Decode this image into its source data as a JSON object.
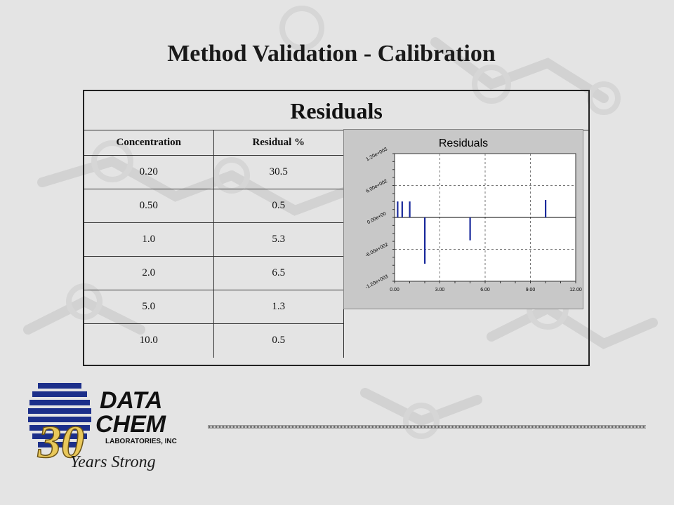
{
  "slide": {
    "title": "Method Validation - Calibration"
  },
  "panel": {
    "title": "Residuals"
  },
  "table": {
    "headers": [
      "Concentration",
      "Residual %"
    ],
    "rows": [
      [
        "0.20",
        "30.5"
      ],
      [
        "0.50",
        "0.5"
      ],
      [
        "1.0",
        "5.3"
      ],
      [
        "2.0",
        "6.5"
      ],
      [
        "5.0",
        "1.3"
      ],
      [
        "10.0",
        "0.5"
      ]
    ]
  },
  "chart_data": {
    "type": "bar",
    "title": "Residuals",
    "xlabel": "",
    "ylabel": "",
    "xlim": [
      0,
      12
    ],
    "ylim": [
      -1200,
      1200
    ],
    "x_ticks": [
      "0.00",
      "3.00",
      "6.00",
      "9.00",
      "12.00"
    ],
    "y_ticks": [
      "1.20e+003",
      "6.00e+002",
      "0.00e+00",
      "-6.00e+002",
      "-1.20e+003"
    ],
    "grid": true,
    "points": [
      {
        "x": 0.2,
        "y": 300
      },
      {
        "x": 0.5,
        "y": 300
      },
      {
        "x": 1.0,
        "y": 300
      },
      {
        "x": 2.0,
        "y": -870
      },
      {
        "x": 5.0,
        "y": -430
      },
      {
        "x": 10.0,
        "y": 330
      }
    ],
    "bar_color": "#1a2a9c"
  },
  "logo": {
    "line1": "DATA",
    "line2": "CHEM",
    "line3": "LABORATORIES, INC",
    "anniversary": "30",
    "tagline": "Years Strong"
  }
}
